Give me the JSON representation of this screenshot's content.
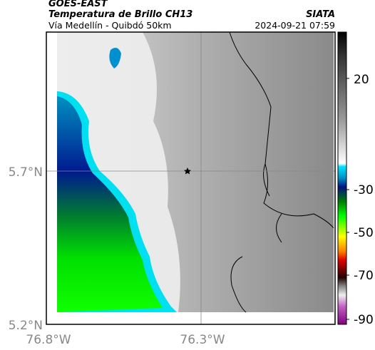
{
  "header": {
    "title": "GOES-EAST",
    "subtitle": "Temperatura de Brillo CH13",
    "region": "Vía Medellín - Quibdó 50km",
    "source": "SIATA",
    "timestamp": "2024-09-21 07:59"
  },
  "axes": {
    "y_labels": [
      "5.7°N",
      "5.2°N"
    ],
    "x_labels": [
      "76.8°W",
      "76.3°W"
    ]
  },
  "colorbar": {
    "labels": [
      "20",
      "-30",
      "-50",
      "-70",
      "-90"
    ]
  }
}
